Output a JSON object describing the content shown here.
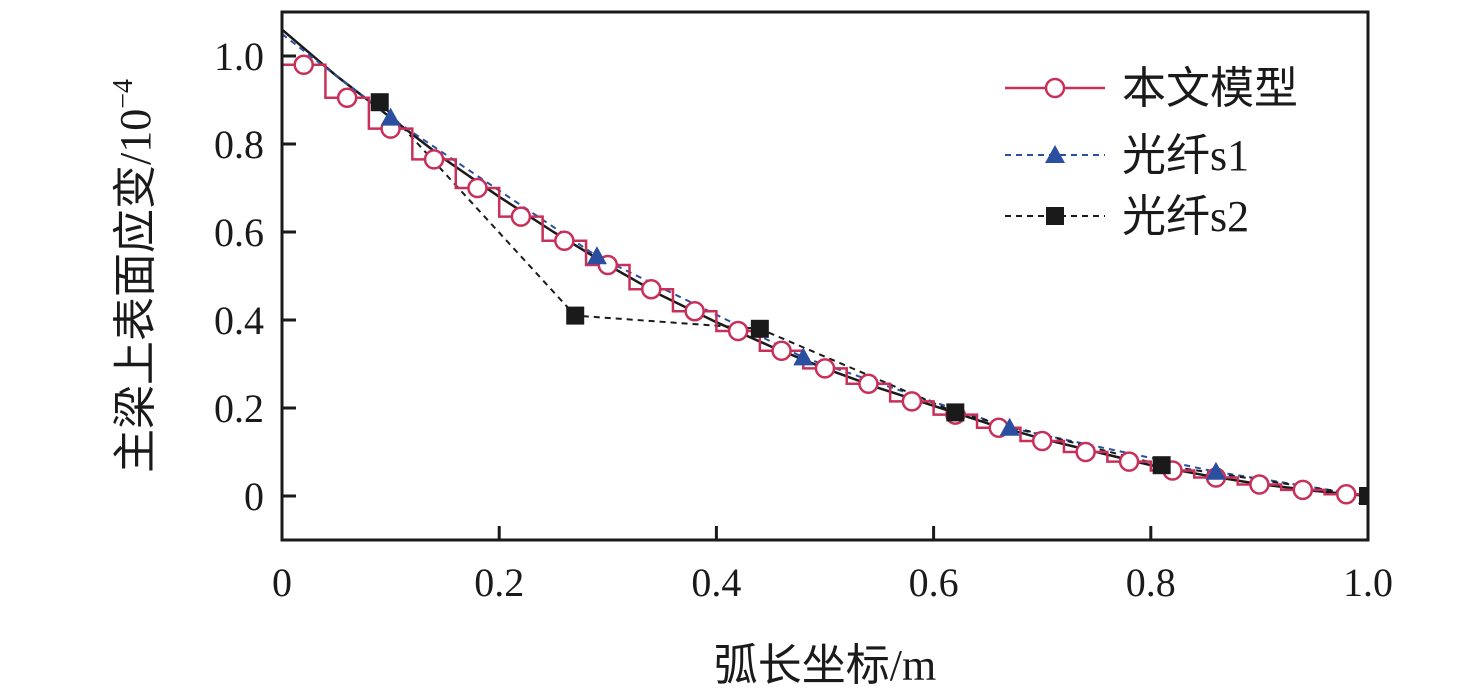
{
  "chart_data": {
    "type": "line",
    "xlabel": "弧长坐标/m",
    "ylabel": "主梁上表面应变/10",
    "ylabel_exponent": "−4",
    "xlim": [
      0,
      1.0
    ],
    "ylim": [
      -0.1,
      1.1
    ],
    "x_ticks": [
      "0",
      "0.2",
      "0.4",
      "0.6",
      "0.8",
      "1.0"
    ],
    "y_ticks": [
      "0",
      "0.2",
      "0.4",
      "0.6",
      "0.8",
      "1.0"
    ],
    "legend_position": "top-right",
    "series": [
      {
        "name": "本文模型",
        "style": "solid-line-open-circle",
        "color": "#c8305a",
        "x": [
          0.02,
          0.06,
          0.1,
          0.14,
          0.18,
          0.22,
          0.26,
          0.3,
          0.34,
          0.38,
          0.42,
          0.46,
          0.5,
          0.54,
          0.58,
          0.62,
          0.66,
          0.7,
          0.74,
          0.78,
          0.82,
          0.86,
          0.9,
          0.94,
          0.98
        ],
        "y": [
          0.98,
          0.905,
          0.835,
          0.765,
          0.7,
          0.635,
          0.58,
          0.525,
          0.47,
          0.42,
          0.375,
          0.33,
          0.29,
          0.255,
          0.215,
          0.185,
          0.155,
          0.125,
          0.1,
          0.078,
          0.058,
          0.042,
          0.026,
          0.014,
          0.004
        ]
      },
      {
        "name": "光纤s1",
        "style": "dashed-line-filled-triangle",
        "color": "#2b4fa0",
        "x": [
          0.0,
          0.1,
          0.29,
          0.48,
          0.67,
          0.86,
          1.0
        ],
        "y": [
          1.05,
          0.86,
          0.545,
          0.315,
          0.155,
          0.055,
          0.0
        ]
      },
      {
        "name": "光纤s2",
        "style": "dashed-line-filled-square",
        "color": "#1a1a1a",
        "x": [
          0.09,
          0.27,
          0.44,
          0.62,
          0.81,
          1.0
        ],
        "y": [
          0.895,
          0.41,
          0.38,
          0.19,
          0.07,
          0.0
        ]
      }
    ],
    "fit_curve": {
      "style": "solid-black",
      "x": [
        0.0,
        0.05,
        0.1,
        0.15,
        0.2,
        0.25,
        0.3,
        0.35,
        0.4,
        0.45,
        0.5,
        0.55,
        0.6,
        0.65,
        0.7,
        0.75,
        0.8,
        0.85,
        0.9,
        0.95,
        1.0
      ],
      "y": [
        1.06,
        0.955,
        0.86,
        0.765,
        0.68,
        0.6,
        0.525,
        0.455,
        0.395,
        0.34,
        0.29,
        0.245,
        0.205,
        0.165,
        0.13,
        0.1,
        0.07,
        0.047,
        0.027,
        0.012,
        0.0
      ]
    }
  }
}
